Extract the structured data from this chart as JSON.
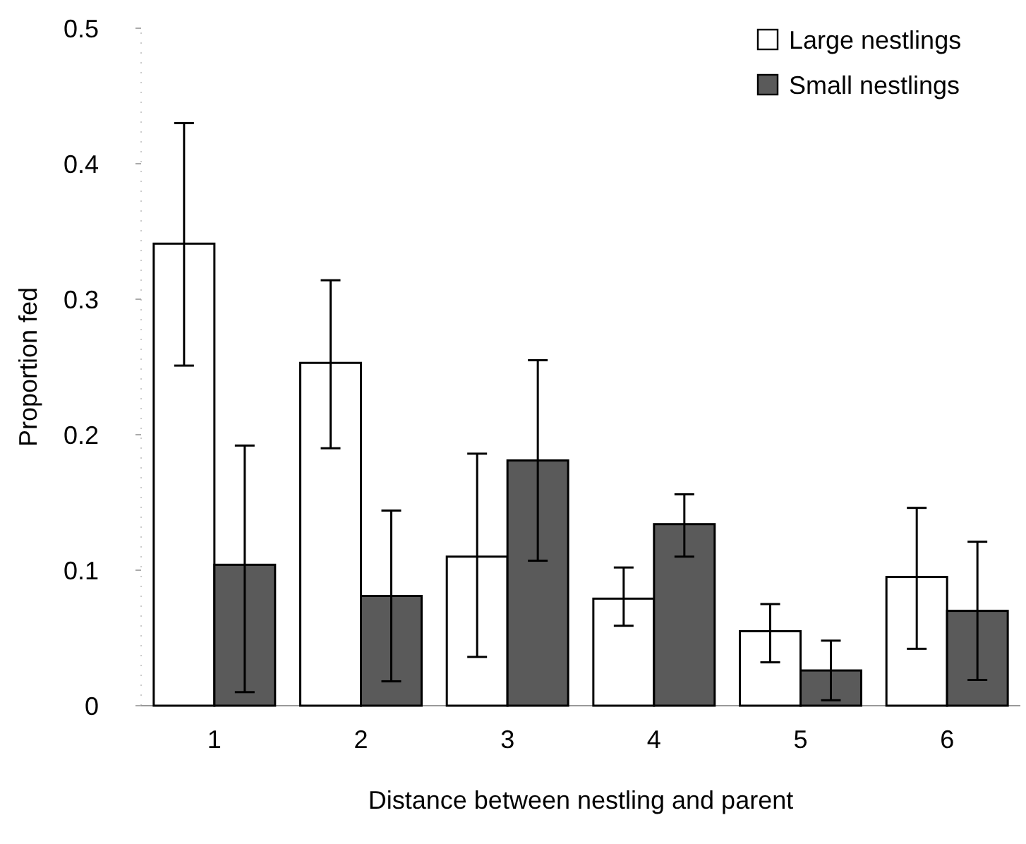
{
  "chart_data": {
    "type": "bar",
    "xlabel": "Distance between nestling and parent",
    "ylabel": "Proportion fed",
    "categories": [
      "1",
      "2",
      "3",
      "4",
      "5",
      "6"
    ],
    "series": [
      {
        "name": "Large nestlings",
        "color": "#ffffff",
        "values": [
          0.341,
          0.253,
          0.11,
          0.079,
          0.055,
          0.095
        ],
        "errors": [
          [
            0.251,
            0.43
          ],
          [
            0.19,
            0.314
          ],
          [
            0.036,
            0.186
          ],
          [
            0.059,
            0.102
          ],
          [
            0.032,
            0.075
          ],
          [
            0.042,
            0.146
          ]
        ]
      },
      {
        "name": "Small nestlings",
        "color": "#5a5a5a",
        "values": [
          0.104,
          0.081,
          0.181,
          0.134,
          0.026,
          0.07
        ],
        "errors": [
          [
            0.01,
            0.192
          ],
          [
            0.018,
            0.144
          ],
          [
            0.107,
            0.255
          ],
          [
            0.11,
            0.156
          ],
          [
            0.004,
            0.048
          ],
          [
            0.019,
            0.121
          ]
        ]
      }
    ],
    "ylim": [
      0,
      0.5
    ],
    "yticks": [
      {
        "value": 0,
        "label": "0"
      },
      0.1,
      0.2,
      0.3,
      0.4,
      0.5
    ],
    "legend": "top right"
  }
}
